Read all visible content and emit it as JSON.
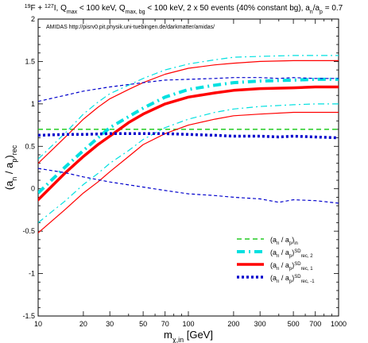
{
  "chart_data": {
    "type": "line",
    "title": "<sup>19</sup>F + <sup>127</sup>I, Q<sub>max</sub> < 100 keV, Q<sub>max, bg</sub> < 100 keV, 2 x 50 events (40% constant bg), a<sub>n</sub>/a<sub>p</sub> = 0.7",
    "annotation": "AMIDAS   http://pisrv0.pit.physik.uni-tuebingen.de/darkmatter/amidas/",
    "xlabel": "m<sub>χ,in</sub> [GeV]",
    "ylabel": "(a<sub>n</sub> / a<sub>p</sub>)<sub>rec</sub>",
    "xscale": "log",
    "xlim": [
      10,
      1000
    ],
    "ylim": [
      -1.5,
      2
    ],
    "xticks": [
      {
        "v": 10,
        "label": "10"
      },
      {
        "v": 20,
        "label": "20"
      },
      {
        "v": 30,
        "label": "30"
      },
      {
        "v": 50,
        "label": "50"
      },
      {
        "v": 70,
        "label": "70"
      },
      {
        "v": 100,
        "label": "100"
      },
      {
        "v": 200,
        "label": "200"
      },
      {
        "v": 300,
        "label": "300"
      },
      {
        "v": 500,
        "label": "500"
      },
      {
        "v": 700,
        "label": "700"
      },
      {
        "v": 1000,
        "label": "1000"
      }
    ],
    "yticks": [
      {
        "v": -1.5,
        "label": "-1.5"
      },
      {
        "v": -1,
        "label": "-1"
      },
      {
        "v": -0.5,
        "label": "-0.5"
      },
      {
        "v": 0,
        "label": "0"
      },
      {
        "v": 0.5,
        "label": "0.5"
      },
      {
        "v": 1,
        "label": "1"
      },
      {
        "v": 1.5,
        "label": "1.5"
      },
      {
        "v": 2,
        "label": "2"
      }
    ],
    "legend_position": "bottom-right",
    "series": [
      {
        "name": "(a<sub>n</sub> / a<sub>p</sub>)<sub>in</sub>",
        "color": "#22cc22",
        "style": "dashed-green",
        "x": [
          10,
          1000
        ],
        "y": [
          0.7,
          0.7
        ]
      },
      {
        "name": "(a<sub>n</sub> / a<sub>p</sub>)<sup>SD</sup><sub>rec, 2</sub>",
        "color": "#00e0e0",
        "style": "thick-dashdot-cyan",
        "x": [
          10,
          15,
          20,
          25,
          30,
          40,
          50,
          70,
          100,
          150,
          200,
          300,
          500,
          700,
          1000
        ],
        "y": [
          -0.05,
          0.25,
          0.45,
          0.6,
          0.72,
          0.85,
          0.95,
          1.08,
          1.17,
          1.22,
          1.25,
          1.27,
          1.28,
          1.29,
          1.29
        ]
      },
      {
        "name": "(a<sub>n</sub> / a<sub>p</sub>)<sup>SD</sup><sub>rec, 2</sub> upper",
        "color": "#00e0e0",
        "style": "thin-dashdot-cyan",
        "in_legend": false,
        "x": [
          10,
          15,
          20,
          25,
          30,
          40,
          50,
          70,
          100,
          150,
          200,
          300,
          500,
          700,
          1000
        ],
        "y": [
          0.35,
          0.65,
          0.88,
          1.02,
          1.12,
          1.22,
          1.3,
          1.4,
          1.47,
          1.52,
          1.55,
          1.56,
          1.57,
          1.57,
          1.57
        ]
      },
      {
        "name": "(a<sub>n</sub> / a<sub>p</sub>)<sup>SD</sup><sub>rec, 2</sub> lower",
        "color": "#00e0e0",
        "style": "thin-dashdot-cyan",
        "in_legend": false,
        "x": [
          10,
          15,
          20,
          25,
          30,
          40,
          50,
          70,
          100,
          150,
          200,
          300,
          500,
          700,
          1000
        ],
        "y": [
          -0.4,
          -0.15,
          0.05,
          0.18,
          0.3,
          0.45,
          0.58,
          0.72,
          0.82,
          0.9,
          0.94,
          0.97,
          0.99,
          1.0,
          1.0
        ]
      },
      {
        "name": "(a<sub>n</sub> / a<sub>p</sub>)<sup>SD</sup><sub>rec, 1</sub>",
        "color": "#ff0000",
        "style": "thick-solid-red",
        "x": [
          10,
          15,
          20,
          25,
          30,
          40,
          50,
          70,
          100,
          150,
          200,
          300,
          500,
          700,
          1000
        ],
        "y": [
          -0.13,
          0.18,
          0.38,
          0.52,
          0.62,
          0.78,
          0.88,
          1.0,
          1.08,
          1.13,
          1.16,
          1.18,
          1.19,
          1.2,
          1.2
        ]
      },
      {
        "name": "(a<sub>n</sub> / a<sub>p</sub>)<sup>SD</sup><sub>rec, 1</sub> upper",
        "color": "#ff0000",
        "style": "thin-solid-red",
        "in_legend": false,
        "x": [
          10,
          15,
          20,
          25,
          30,
          40,
          50,
          70,
          100,
          150,
          200,
          300,
          500,
          700,
          1000
        ],
        "y": [
          0.3,
          0.6,
          0.82,
          0.96,
          1.06,
          1.17,
          1.25,
          1.35,
          1.42,
          1.46,
          1.48,
          1.5,
          1.51,
          1.51,
          1.51
        ]
      },
      {
        "name": "(a<sub>n</sub> / a<sub>p</sub>)<sup>SD</sup><sub>rec, 1</sub> lower",
        "color": "#ff0000",
        "style": "thin-solid-red",
        "in_legend": false,
        "x": [
          10,
          15,
          20,
          25,
          30,
          40,
          50,
          70,
          100,
          150,
          200,
          300,
          500,
          700,
          1000
        ],
        "y": [
          -0.52,
          -0.25,
          -0.05,
          0.08,
          0.2,
          0.38,
          0.52,
          0.65,
          0.75,
          0.82,
          0.86,
          0.88,
          0.9,
          0.9,
          0.9
        ]
      },
      {
        "name": "(a<sub>n</sub> / a<sub>p</sub>)<sup>SD</sup><sub>rec, -1</sub>",
        "color": "#0000cc",
        "style": "thick-dotted-blue",
        "x": [
          10,
          15,
          20,
          30,
          50,
          70,
          100,
          150,
          200,
          300,
          400,
          500,
          700,
          1000
        ],
        "y": [
          0.63,
          0.64,
          0.64,
          0.65,
          0.65,
          0.65,
          0.64,
          0.63,
          0.62,
          0.62,
          0.61,
          0.62,
          0.61,
          0.6
        ]
      },
      {
        "name": "(a<sub>n</sub> / a<sub>p</sub>)<sup>SD</sup><sub>rec, -1</sub> upper",
        "color": "#0000cc",
        "style": "thin-dashed-blue",
        "in_legend": false,
        "x": [
          10,
          15,
          20,
          30,
          50,
          70,
          100,
          150,
          200,
          300,
          400,
          500,
          700,
          1000
        ],
        "y": [
          1.03,
          1.1,
          1.15,
          1.2,
          1.25,
          1.28,
          1.29,
          1.3,
          1.31,
          1.31,
          1.3,
          1.31,
          1.3,
          1.3
        ]
      },
      {
        "name": "(a<sub>n</sub> / a<sub>p</sub>)<sup>SD</sup><sub>rec, -1</sub> lower",
        "color": "#0000cc",
        "style": "thin-dashed-blue",
        "in_legend": false,
        "x": [
          10,
          15,
          20,
          30,
          50,
          70,
          100,
          150,
          200,
          300,
          400,
          500,
          700,
          1000
        ],
        "y": [
          0.24,
          0.19,
          0.14,
          0.08,
          0.02,
          -0.02,
          -0.06,
          -0.08,
          -0.1,
          -0.12,
          -0.16,
          -0.13,
          -0.14,
          -0.17
        ]
      }
    ]
  }
}
